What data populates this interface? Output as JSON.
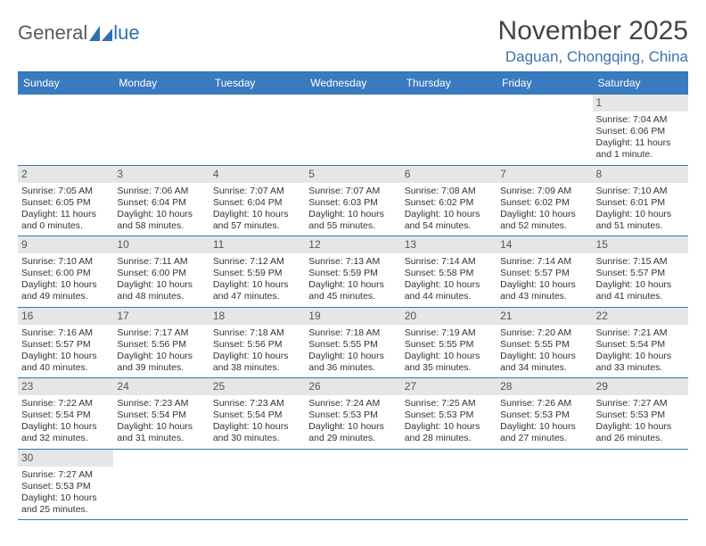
{
  "logo": {
    "text_left": "General",
    "text_right": "lue"
  },
  "title": "November 2025",
  "location": "Daguan, Chongqing, China",
  "day_labels": [
    "Sunday",
    "Monday",
    "Tuesday",
    "Wednesday",
    "Thursday",
    "Friday",
    "Saturday"
  ],
  "colors": {
    "header_bg": "#3a7ac0",
    "border": "#3a74ad",
    "daynum_bg": "#e6e6e6",
    "logo_blue": "#2f6fb0"
  },
  "weeks": [
    [
      null,
      null,
      null,
      null,
      null,
      null,
      {
        "n": "1",
        "sunrise": "7:04 AM",
        "sunset": "6:06 PM",
        "daylight": "11 hours and 1 minute."
      }
    ],
    [
      {
        "n": "2",
        "sunrise": "7:05 AM",
        "sunset": "6:05 PM",
        "daylight": "11 hours and 0 minutes."
      },
      {
        "n": "3",
        "sunrise": "7:06 AM",
        "sunset": "6:04 PM",
        "daylight": "10 hours and 58 minutes."
      },
      {
        "n": "4",
        "sunrise": "7:07 AM",
        "sunset": "6:04 PM",
        "daylight": "10 hours and 57 minutes."
      },
      {
        "n": "5",
        "sunrise": "7:07 AM",
        "sunset": "6:03 PM",
        "daylight": "10 hours and 55 minutes."
      },
      {
        "n": "6",
        "sunrise": "7:08 AM",
        "sunset": "6:02 PM",
        "daylight": "10 hours and 54 minutes."
      },
      {
        "n": "7",
        "sunrise": "7:09 AM",
        "sunset": "6:02 PM",
        "daylight": "10 hours and 52 minutes."
      },
      {
        "n": "8",
        "sunrise": "7:10 AM",
        "sunset": "6:01 PM",
        "daylight": "10 hours and 51 minutes."
      }
    ],
    [
      {
        "n": "9",
        "sunrise": "7:10 AM",
        "sunset": "6:00 PM",
        "daylight": "10 hours and 49 minutes."
      },
      {
        "n": "10",
        "sunrise": "7:11 AM",
        "sunset": "6:00 PM",
        "daylight": "10 hours and 48 minutes."
      },
      {
        "n": "11",
        "sunrise": "7:12 AM",
        "sunset": "5:59 PM",
        "daylight": "10 hours and 47 minutes."
      },
      {
        "n": "12",
        "sunrise": "7:13 AM",
        "sunset": "5:59 PM",
        "daylight": "10 hours and 45 minutes."
      },
      {
        "n": "13",
        "sunrise": "7:14 AM",
        "sunset": "5:58 PM",
        "daylight": "10 hours and 44 minutes."
      },
      {
        "n": "14",
        "sunrise": "7:14 AM",
        "sunset": "5:57 PM",
        "daylight": "10 hours and 43 minutes."
      },
      {
        "n": "15",
        "sunrise": "7:15 AM",
        "sunset": "5:57 PM",
        "daylight": "10 hours and 41 minutes."
      }
    ],
    [
      {
        "n": "16",
        "sunrise": "7:16 AM",
        "sunset": "5:57 PM",
        "daylight": "10 hours and 40 minutes."
      },
      {
        "n": "17",
        "sunrise": "7:17 AM",
        "sunset": "5:56 PM",
        "daylight": "10 hours and 39 minutes."
      },
      {
        "n": "18",
        "sunrise": "7:18 AM",
        "sunset": "5:56 PM",
        "daylight": "10 hours and 38 minutes."
      },
      {
        "n": "19",
        "sunrise": "7:18 AM",
        "sunset": "5:55 PM",
        "daylight": "10 hours and 36 minutes."
      },
      {
        "n": "20",
        "sunrise": "7:19 AM",
        "sunset": "5:55 PM",
        "daylight": "10 hours and 35 minutes."
      },
      {
        "n": "21",
        "sunrise": "7:20 AM",
        "sunset": "5:55 PM",
        "daylight": "10 hours and 34 minutes."
      },
      {
        "n": "22",
        "sunrise": "7:21 AM",
        "sunset": "5:54 PM",
        "daylight": "10 hours and 33 minutes."
      }
    ],
    [
      {
        "n": "23",
        "sunrise": "7:22 AM",
        "sunset": "5:54 PM",
        "daylight": "10 hours and 32 minutes."
      },
      {
        "n": "24",
        "sunrise": "7:23 AM",
        "sunset": "5:54 PM",
        "daylight": "10 hours and 31 minutes."
      },
      {
        "n": "25",
        "sunrise": "7:23 AM",
        "sunset": "5:54 PM",
        "daylight": "10 hours and 30 minutes."
      },
      {
        "n": "26",
        "sunrise": "7:24 AM",
        "sunset": "5:53 PM",
        "daylight": "10 hours and 29 minutes."
      },
      {
        "n": "27",
        "sunrise": "7:25 AM",
        "sunset": "5:53 PM",
        "daylight": "10 hours and 28 minutes."
      },
      {
        "n": "28",
        "sunrise": "7:26 AM",
        "sunset": "5:53 PM",
        "daylight": "10 hours and 27 minutes."
      },
      {
        "n": "29",
        "sunrise": "7:27 AM",
        "sunset": "5:53 PM",
        "daylight": "10 hours and 26 minutes."
      }
    ],
    [
      {
        "n": "30",
        "sunrise": "7:27 AM",
        "sunset": "5:53 PM",
        "daylight": "10 hours and 25 minutes."
      },
      null,
      null,
      null,
      null,
      null,
      null
    ]
  ]
}
